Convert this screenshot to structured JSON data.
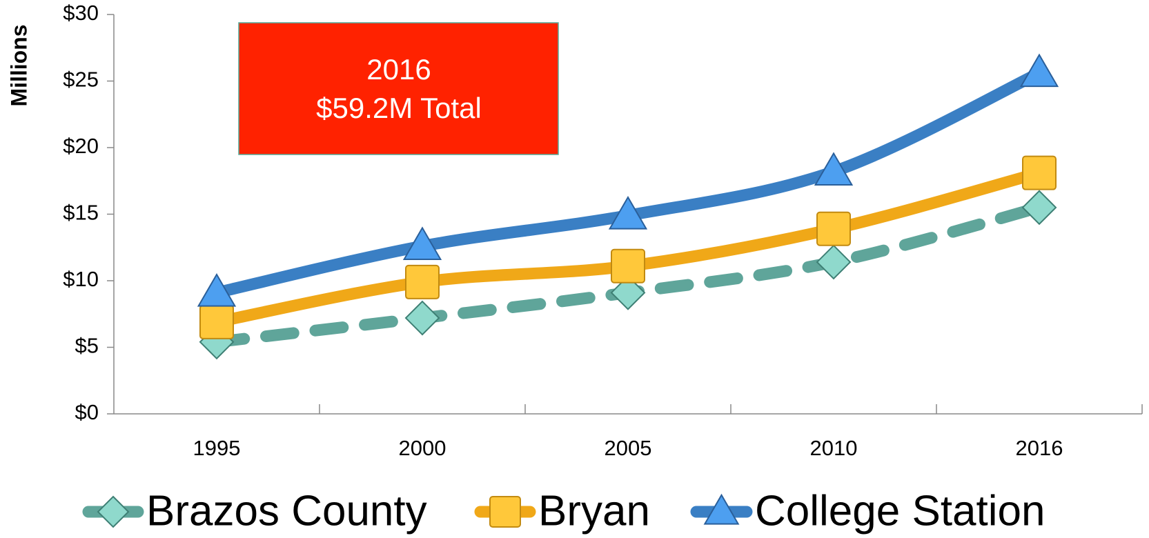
{
  "chart_data": {
    "type": "line",
    "y_axis_label": "Millions",
    "annotation": [
      "2016",
      "$59.2M Total"
    ],
    "annotation_color": "#ff2200",
    "categories": [
      "1995",
      "2000",
      "2005",
      "2010",
      "2016"
    ],
    "series": [
      {
        "name": "Brazos County",
        "color": "#5fa59a",
        "marker": "diamond",
        "marker_color": "#8fd9cc",
        "dashed": true,
        "values": [
          5.4,
          7.2,
          9.1,
          11.4,
          15.5
        ]
      },
      {
        "name": "Bryan",
        "color": "#f0a818",
        "marker": "square",
        "marker_color": "#ffc83a",
        "dashed": false,
        "values": [
          6.9,
          9.9,
          11.1,
          13.9,
          18.1
        ]
      },
      {
        "name": "College Station",
        "color": "#3a7fc4",
        "marker": "triangle",
        "marker_color": "#4d9ff0",
        "dashed": false,
        "values": [
          9.1,
          12.6,
          14.9,
          18.2,
          25.6
        ]
      }
    ],
    "ylim": [
      0,
      30
    ],
    "yticks": [
      {
        "value": 0,
        "label": "$0"
      },
      {
        "value": 5,
        "label": "$5"
      },
      {
        "value": 10,
        "label": "$10"
      },
      {
        "value": 15,
        "label": "$15"
      },
      {
        "value": 20,
        "label": "$20"
      },
      {
        "value": 25,
        "label": "$25"
      },
      {
        "value": 30,
        "label": "$30"
      }
    ],
    "grid": false,
    "legend": "bottom"
  }
}
